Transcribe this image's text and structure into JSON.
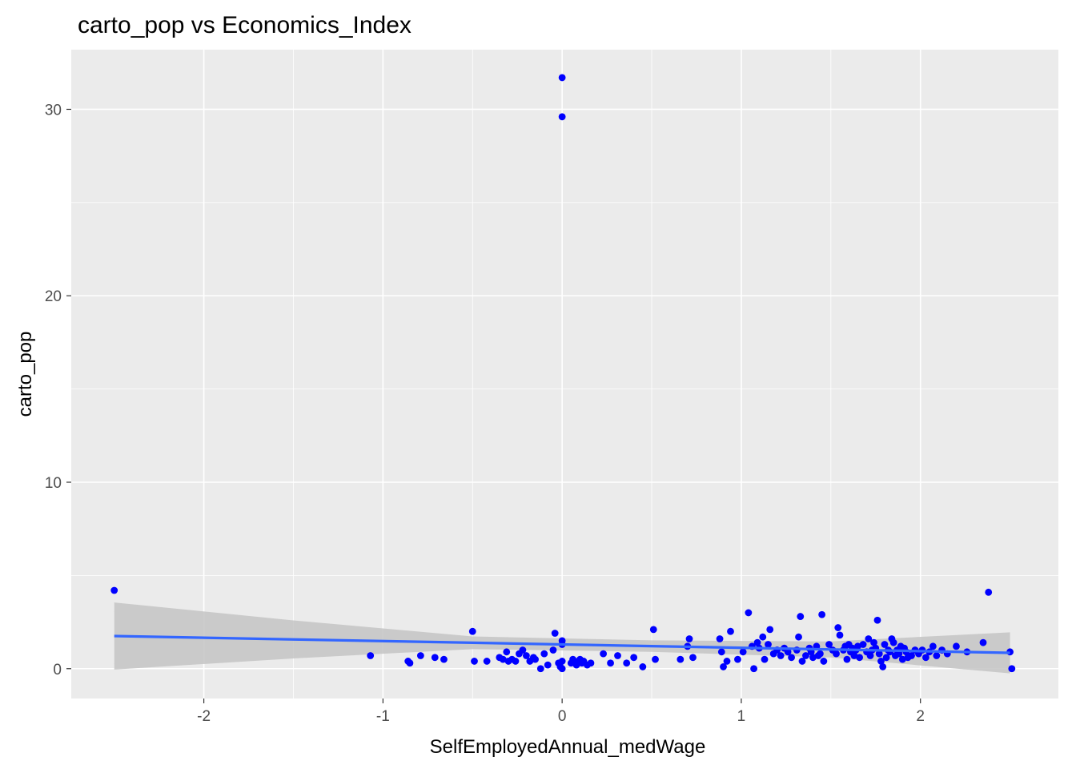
{
  "chart_data": {
    "type": "scatter",
    "title": "carto_pop vs Economics_Index",
    "xlabel": "SelfEmployedAnnual_medWage",
    "ylabel": "carto_pop",
    "xlim": [
      -2.74,
      2.77
    ],
    "ylim": [
      -1.6,
      33.2
    ],
    "x_ticks": [
      -2,
      -1,
      0,
      1,
      2
    ],
    "x_tick_labels": [
      "-2",
      "-1",
      "0",
      "1",
      "2"
    ],
    "y_ticks": [
      0,
      10,
      20,
      30
    ],
    "y_tick_labels": [
      "0",
      "10",
      "20",
      "30"
    ],
    "grid": true,
    "legend": "none",
    "colors": {
      "panel": "#ebebeb",
      "grid": "#ffffff",
      "points": "#0000ff",
      "smooth_line": "#3366ff",
      "ribbon": "#c4c4c4"
    },
    "series": [
      {
        "x": [
          -2.5,
          -1.07,
          -0.86,
          -0.85,
          -0.79,
          -0.71,
          -0.66,
          -0.5,
          -0.49,
          -0.42,
          -0.35,
          -0.33,
          -0.31,
          -0.3,
          -0.28,
          -0.26,
          -0.24,
          -0.22,
          -0.2,
          -0.18,
          -0.16,
          -0.15,
          -0.12,
          -0.1,
          -0.08,
          -0.05,
          -0.04,
          -0.02,
          -0.01,
          0,
          0,
          0,
          0,
          0,
          0,
          0.05,
          0.06,
          0.08,
          0.09,
          0.1,
          0.11,
          0.12,
          0.14,
          0.16,
          0.23,
          0.27,
          0.31,
          0.36,
          0.4,
          0.45,
          0.51,
          0.52,
          0.66,
          0.7,
          0.71,
          0.73,
          0.88,
          0.89,
          0.9,
          0.92,
          0.94,
          0.98,
          1.01,
          1.04,
          1.06,
          1.07,
          1.09,
          1.1,
          1.12,
          1.13,
          1.15,
          1.16,
          1.18,
          1.2,
          1.22,
          1.24,
          1.26,
          1.28,
          1.31,
          1.32,
          1.33,
          1.34,
          1.36,
          1.38,
          1.39,
          1.4,
          1.42,
          1.43,
          1.44,
          1.45,
          1.46,
          1.49,
          1.51,
          1.53,
          1.54,
          1.55,
          1.57,
          1.58,
          1.59,
          1.6,
          1.61,
          1.62,
          1.63,
          1.64,
          1.65,
          1.66,
          1.68,
          1.7,
          1.71,
          1.72,
          1.73,
          1.74,
          1.75,
          1.76,
          1.77,
          1.78,
          1.79,
          1.8,
          1.81,
          1.82,
          1.83,
          1.84,
          1.85,
          1.86,
          1.87,
          1.88,
          1.89,
          1.9,
          1.91,
          1.92,
          1.93,
          1.95,
          1.97,
          1.99,
          2.01,
          2.03,
          2.05,
          2.07,
          2.09,
          2.12,
          2.15,
          2.2,
          2.26,
          2.35,
          2.38,
          2.5,
          2.51
        ],
        "y": [
          4.2,
          0.7,
          0.4,
          0.3,
          0.7,
          0.6,
          0.5,
          2.0,
          0.4,
          0.4,
          0.6,
          0.5,
          0.9,
          0.4,
          0.5,
          0.4,
          0.8,
          1.0,
          0.7,
          0.4,
          0.6,
          0.5,
          0.0,
          0.8,
          0.2,
          1.0,
          1.9,
          0.3,
          0.1,
          31.7,
          29.6,
          1.5,
          1.3,
          0.4,
          0.0,
          0.3,
          0.5,
          0.2,
          0.4,
          0.5,
          0.3,
          0.4,
          0.2,
          0.3,
          0.8,
          0.3,
          0.7,
          0.3,
          0.6,
          0.1,
          2.1,
          0.5,
          0.5,
          1.2,
          1.6,
          0.6,
          1.6,
          0.9,
          0.1,
          0.4,
          2.0,
          0.5,
          0.9,
          3.0,
          1.2,
          0.0,
          1.4,
          1.1,
          1.7,
          0.5,
          1.3,
          2.1,
          0.8,
          1.0,
          0.7,
          1.1,
          0.9,
          0.6,
          1.0,
          1.7,
          2.8,
          0.4,
          0.7,
          1.1,
          0.9,
          0.6,
          1.2,
          0.7,
          0.8,
          2.9,
          0.4,
          1.3,
          1.0,
          0.8,
          2.2,
          1.8,
          1.0,
          1.2,
          0.5,
          1.3,
          0.9,
          1.1,
          0.7,
          1.0,
          1.2,
          0.6,
          1.3,
          0.9,
          1.6,
          0.7,
          1.0,
          1.4,
          1.1,
          2.6,
          0.8,
          0.4,
          0.1,
          1.3,
          0.6,
          1.0,
          0.9,
          1.6,
          1.4,
          0.7,
          1.0,
          0.8,
          1.2,
          0.5,
          1.1,
          0.9,
          0.6,
          0.7,
          1.0,
          0.8,
          1.0,
          0.6,
          0.9,
          1.2,
          0.7,
          1.0,
          0.8,
          1.2,
          0.9,
          1.4,
          4.1,
          0.9,
          0.0
        ]
      }
    ],
    "smooth": {
      "x": [
        -2.5,
        -1.5,
        -0.5,
        0.5,
        1.5,
        2.5
      ],
      "y": [
        1.75,
        1.57,
        1.39,
        1.21,
        1.03,
        0.85
      ],
      "ymin": [
        -0.05,
        0.55,
        1.05,
        0.9,
        0.6,
        -0.25
      ],
      "ymax": [
        3.55,
        2.59,
        1.73,
        1.52,
        1.46,
        1.95
      ]
    }
  }
}
